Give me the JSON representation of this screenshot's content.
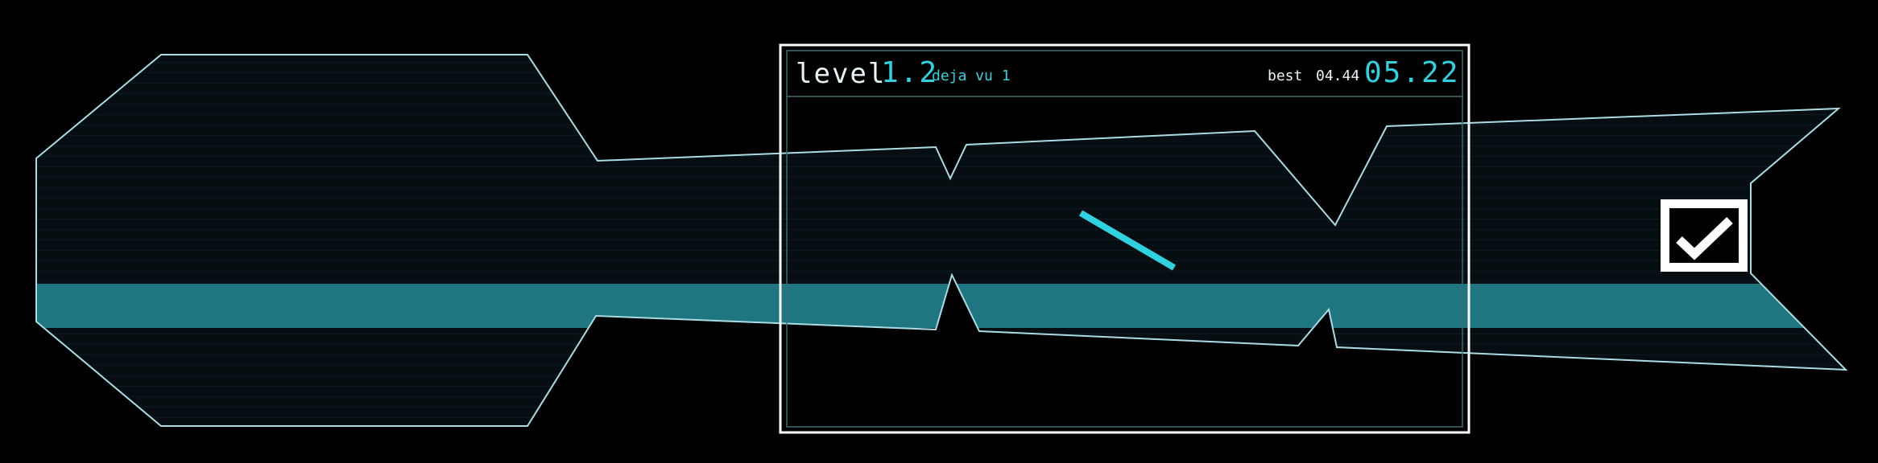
{
  "hud": {
    "level_label": "level",
    "level_number": "1.2",
    "level_name": "deja vu 1",
    "best_label": "best",
    "best_time": "04.44",
    "current_time": "05.22"
  },
  "goal": {
    "icon": "checkmark-icon"
  },
  "player": {
    "icon": "line-segment"
  },
  "colors": {
    "background": "#000000",
    "track_fill": "#070e12",
    "track_stripe": "#0d1a20",
    "track_outline": "#a9dde6",
    "band": "#207680",
    "frame": "#ffffff",
    "accent": "#2fd2e0"
  }
}
